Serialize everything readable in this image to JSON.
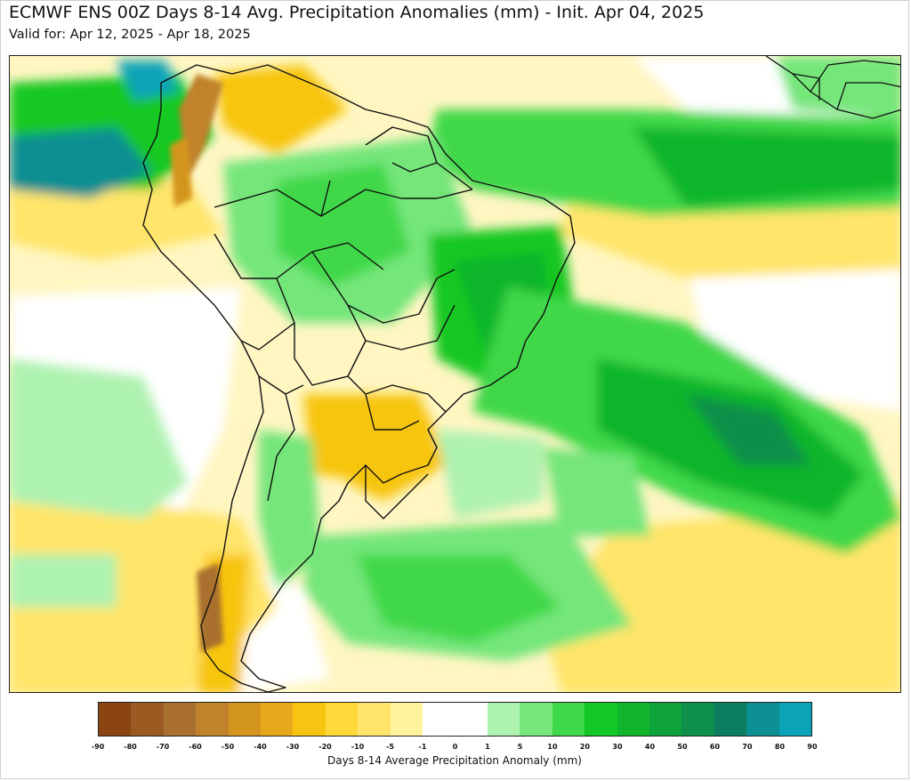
{
  "header": {
    "title": "ECMWF ENS 00Z Days 8-14 Avg. Precipitation Anomalies (mm) - Init. Apr 04, 2025",
    "subtitle": "Valid for: Apr 12, 2025 - Apr 18, 2025"
  },
  "colorbar": {
    "label": "Days 8-14 Average Precipitation Anomaly (mm)",
    "ticks": [
      "-90",
      "-80",
      "-70",
      "-60",
      "-50",
      "-40",
      "-30",
      "-20",
      "-10",
      "-5",
      "-1",
      "0",
      "1",
      "5",
      "10",
      "20",
      "30",
      "40",
      "50",
      "60",
      "70",
      "80",
      "90"
    ],
    "colors": [
      "#8b4513",
      "#9b5a22",
      "#a9702f",
      "#c0822a",
      "#d4951f",
      "#e6a91c",
      "#f7c511",
      "#ffd93a",
      "#ffe56b",
      "#fff29e",
      "#ffffff",
      "#ffffff",
      "#aef2b0",
      "#74e67a",
      "#3fd84a",
      "#12c824",
      "#10b52c",
      "#0ea33a",
      "#0e8f4a",
      "#0d7d60",
      "#0c8f92",
      "#0ba3b8"
    ]
  },
  "colors": {
    "ocean_dry": "#fff29e",
    "wet_light": "#aef2b0",
    "wet_mid": "#3fd84a",
    "wet_strong": "#0ea33a",
    "wet_extreme": "#0c8f92",
    "dry_mid": "#f7c511",
    "dry_strong": "#a9702f",
    "borders": "#111111"
  }
}
